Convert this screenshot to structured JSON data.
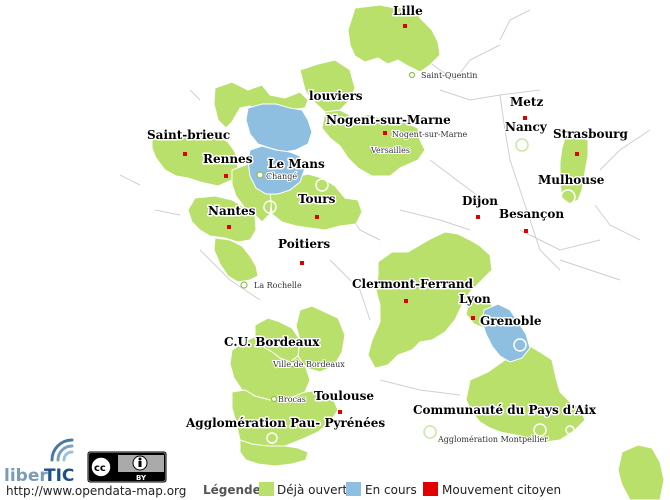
{
  "colors": {
    "open": "#b8e06a",
    "in_progress": "#8fbfe0",
    "movement": "#e00000",
    "border": "#ffffff",
    "boundary": "#c8c8c8"
  },
  "cities": {
    "lille": "Lille",
    "saint_quentin": "Saint-Quentin",
    "louviers": "louviers",
    "nogent_big": "Nogent-sur-Marne",
    "nogent_small": "Nogent-sur-Marne",
    "versailles": "Versailles",
    "metz": "Metz",
    "nancy": "Nancy",
    "strasbourg": "Strasbourg",
    "saint_brieuc": "Saint-brieuc",
    "rennes": "Rennes",
    "le_mans": "Le Mans",
    "change": "Changé",
    "mulhouse": "Mulhouse",
    "tours": "Tours",
    "dijon": "Dijon",
    "nantes": "Nantes",
    "besancon": "Besançon",
    "poitiers": "Poitiers",
    "la_rochelle": "La Rochelle",
    "clermont": "Clermont-Ferrand",
    "lyon": "Lyon",
    "grenoble": "Grenoble",
    "cu_bordeaux": "C.U. Bordeaux",
    "ville_bordeaux": "Ville de Bordeaux",
    "brocas": "Brocas",
    "toulouse": "Toulouse",
    "pau": "Agglomération Pau- Pyrénées",
    "pays_aix": "Communauté du Pays d'Aix",
    "montpellier": "Agglomération Montpellier"
  },
  "footer": {
    "logo_text_a": "liber",
    "logo_text_b": "TIC",
    "url": "http://www.opendata-map.org",
    "cc_label": "BY",
    "legend_title": "Légende:",
    "legend_open": "Déjà ouvert",
    "legend_in_progress": "En cours",
    "legend_movement": "Mouvement citoyen"
  }
}
